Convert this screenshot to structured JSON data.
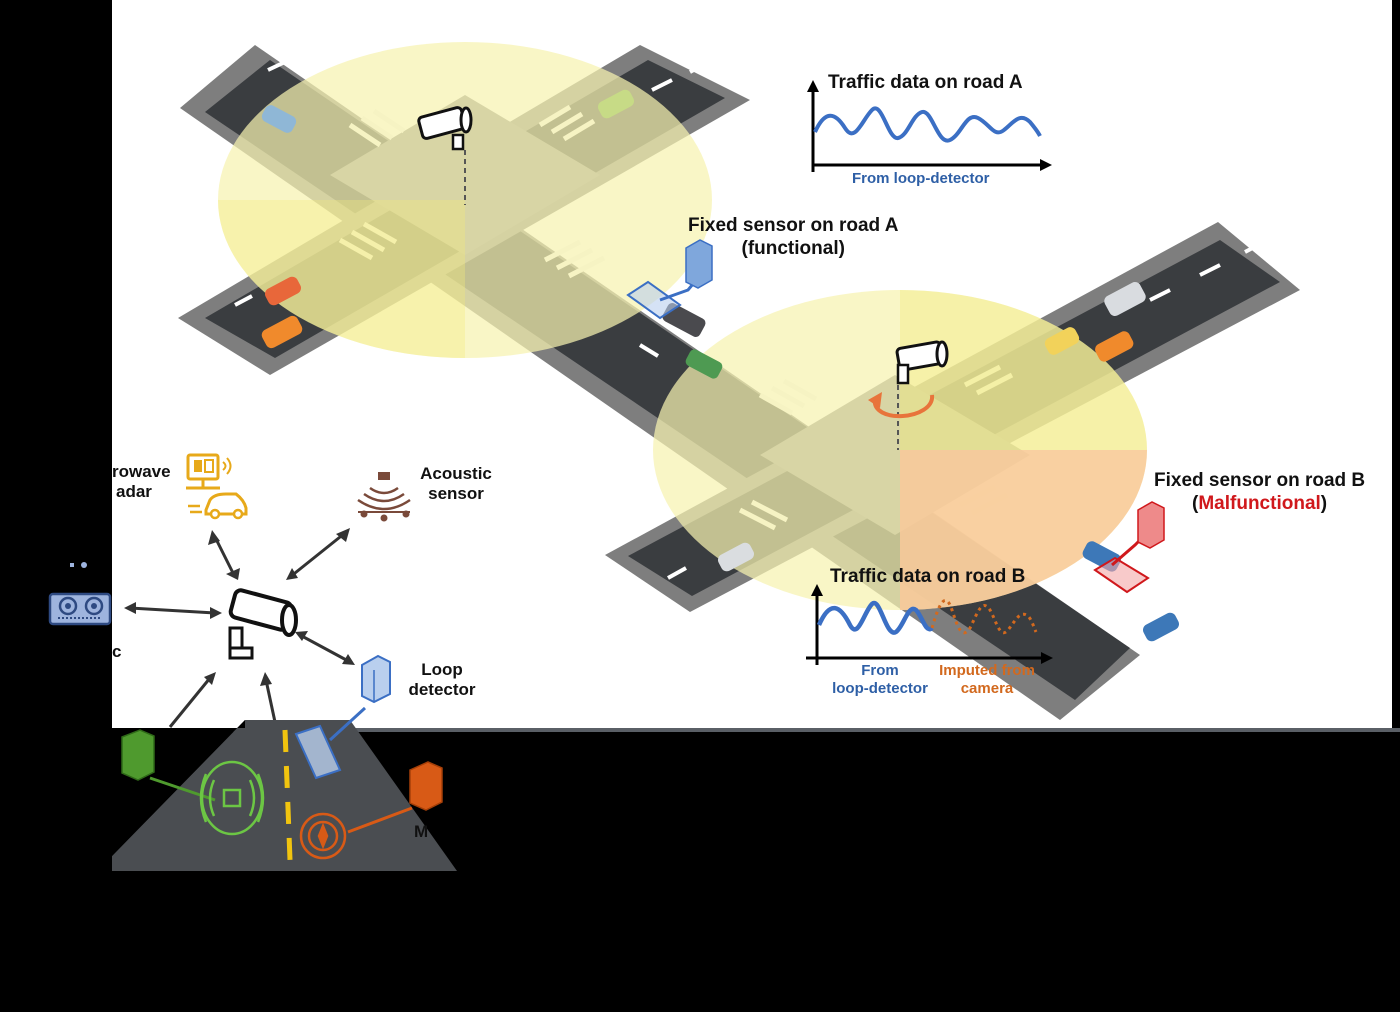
{
  "scene": {
    "colors": {
      "canvas": "#FFFFFF",
      "background": "#000000",
      "road": "#3A3D40",
      "curb": "#7E7E7E",
      "camera_zone": "#F7F3B0",
      "camera_zone_warn": "#F9C99A",
      "signal_blue": "#3B6FC4",
      "signal_orange": "#D2691E",
      "malfunction_red": "#D0181C"
    }
  },
  "labels": {
    "traffic_a_title": "Traffic data on road A",
    "traffic_a_source": "From loop-detector",
    "sensor_a_line1": "Fixed sensor on road A",
    "sensor_a_line2": "(functional)",
    "sensor_b_line1": "Fixed sensor on road B",
    "sensor_b_paren_open": "(",
    "sensor_b_status": "Malfunctional",
    "sensor_b_paren_close": ")",
    "traffic_b_title": "Traffic data on road B",
    "traffic_b_from_1": "From",
    "traffic_b_from_2": "loop-detector",
    "traffic_b_imputed_1": "Imputed from",
    "traffic_b_imputed_2": "camera",
    "microwave_1": "rowave",
    "microwave_2": "adar",
    "acoustic_1": "Acoustic",
    "acoustic_2": "sensor",
    "ultrasonic_frag": "c",
    "loop_1": "Loop",
    "loop_2": "detector",
    "magnetic_frag": "M"
  }
}
